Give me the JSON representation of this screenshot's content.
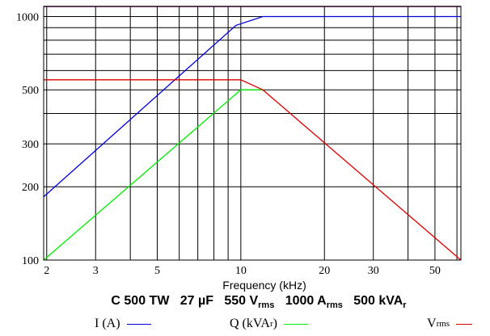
{
  "chart_data": {
    "type": "line",
    "xscale": "log",
    "yscale": "log",
    "xlim": [
      1.95,
      62
    ],
    "ylim": [
      100,
      1100
    ],
    "x_ticks": [
      2,
      3,
      5,
      10,
      20,
      30,
      50
    ],
    "x_tick_labels": [
      "2",
      "3",
      "5",
      "10",
      "20",
      "30",
      "50"
    ],
    "y_ticks": [
      100,
      200,
      300,
      500,
      1000
    ],
    "y_tick_labels": [
      "100",
      "200",
      "300",
      "500",
      "1000"
    ],
    "x_grid": [
      2,
      3,
      4,
      5,
      6,
      7,
      8,
      9,
      10,
      20,
      30,
      40,
      50,
      60
    ],
    "y_grid": [
      100,
      200,
      300,
      400,
      500,
      600,
      700,
      800,
      900,
      1000
    ],
    "grid": true,
    "xlabel": "Frequency (kHz)",
    "ylabel": "",
    "series": [
      {
        "name": "I (A)",
        "color": "#0000dd",
        "x": [
          1.95,
          9.6,
          12,
          62
        ],
        "y": [
          182,
          920,
          1000,
          1000
        ]
      },
      {
        "name": "Q (kVAr)",
        "color": "#00ee00",
        "x": [
          1.95,
          10,
          12
        ],
        "y": [
          100,
          500,
          500
        ]
      },
      {
        "name": "Vrms",
        "color": "#dd0000",
        "x": [
          1.95,
          10,
          12,
          62
        ],
        "y": [
          550,
          550,
          500,
          100
        ]
      }
    ]
  },
  "caption": {
    "model": "C 500 TW",
    "capacitance": "27 µF",
    "voltage_value": "550 V",
    "voltage_sub": "rms",
    "current_value": "1000 A",
    "current_sub": "rms",
    "power_value": "500 kVA",
    "power_sub": "r"
  },
  "legend": {
    "current_label": "I (A)",
    "reactive_label": "Q (kVA",
    "reactive_sub": "r",
    "reactive_close": ")",
    "voltage_label": "V",
    "voltage_sub": "rms"
  }
}
